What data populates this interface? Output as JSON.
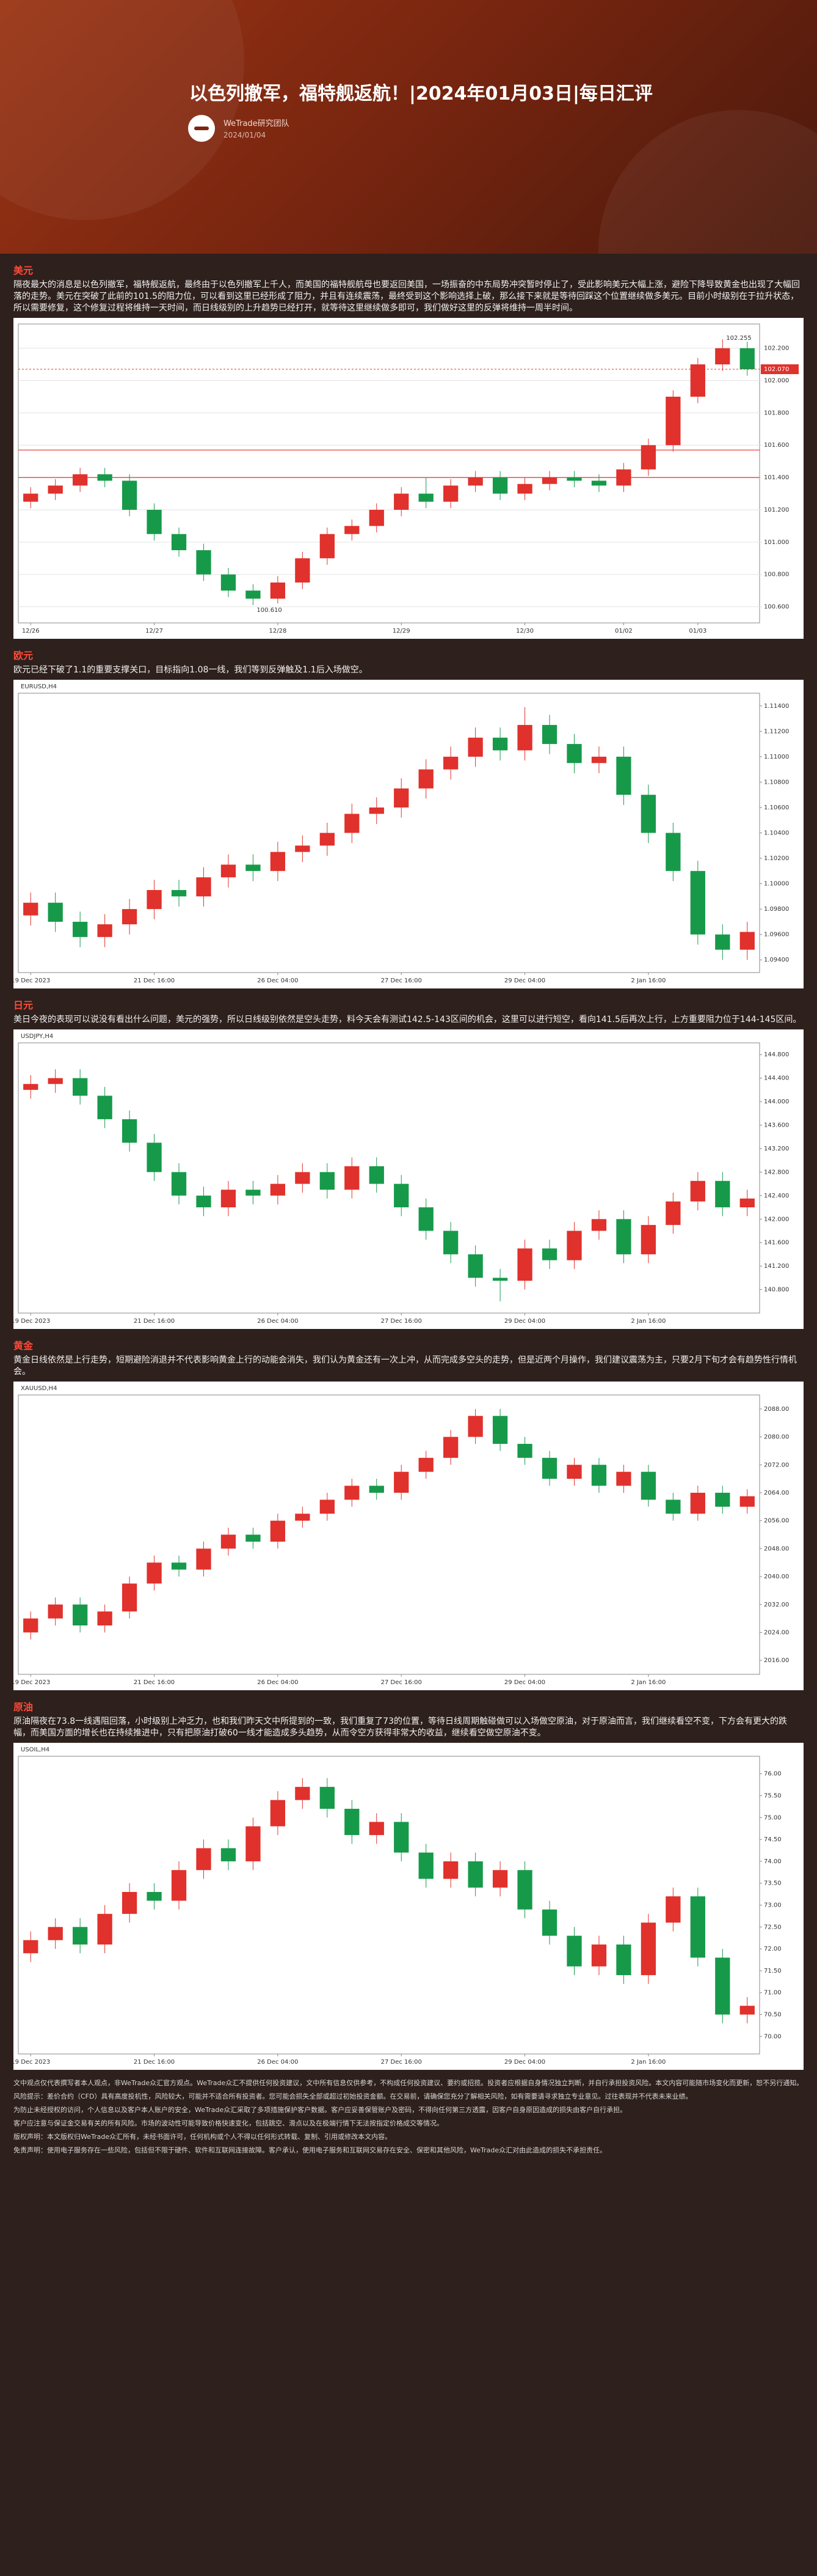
{
  "header": {
    "title": "以色列撤军，福特舰返航！|2024年01月03日|每日汇评",
    "author": "WeTrade研究团队",
    "date": "2024/01/04"
  },
  "sections": [
    {
      "heading": "美元",
      "text": "隔夜最大的消息是以色列撤军，福特舰返航，最终由于以色列撤军上千人，而美国的福特舰航母也要返回美国，一场振奋的中东局势冲突暂时停止了，受此影响美元大幅上涨，避险下降导致黄金也出现了大幅回落的走势。美元在突破了此前的101.5的阻力位，可以看到这里已经形成了阻力，并且有连续震荡，最终受到这个影响选择上破，那么接下来就是等待回踩这个位置继续做多美元。目前小时级别在于拉升状态，所以需要修复，这个修复过程将维持一天时间，而日线级别的上升趋势已经打开，就等待这里继续做多即可，我们做好这里的反弹将维持一周半时间。"
    },
    {
      "heading": "欧元",
      "text": "欧元已经下破了1.1的重要支撑关口，目标指向1.08一线，我们等到反弹触及1.1后入场做空。"
    },
    {
      "heading": "日元",
      "text": "美日今夜的表现可以说没有看出什么问题，美元的强势，所以日线级别依然是空头走势，料今天会有测试142.5-143区间的机会，这里可以进行短空，看向141.5后再次上行，上方重要阻力位于144-145区间。"
    },
    {
      "heading": "黄金",
      "text": "黄金日线依然是上行走势，短期避险消退并不代表影响黄金上行的动能会消失，我们认为黄金还有一次上冲，从而完成多空头的走势，但是近两个月操作，我们建议震荡为主，只要2月下旬才会有趋势性行情机会。"
    },
    {
      "heading": "原油",
      "text": "原油隔夜在73.8一线遇阻回落，小时级别上冲乏力，也和我们昨天文中所提到的一致，我们重复了73的位置，等待日线周期触碰做可以入场做空原油，对于原油而言，我们继续看空不变，下方会有更大的跌幅，而美国方面的增长也在持续推进中，只有把原油打破60一线才能造成多头趋势，从而令空方获得非常大的收益，继续看空做空原油不变。"
    }
  ],
  "chart_data": [
    {
      "type": "candlestick",
      "up_color": "#e0312c",
      "down_color": "#169a4a",
      "grid": true,
      "categories": [
        "12/26",
        null,
        null,
        null,
        null,
        "12/27",
        null,
        null,
        null,
        null,
        "12/28",
        null,
        null,
        null,
        null,
        "12/29",
        null,
        null,
        null,
        null,
        "12/30",
        null,
        null,
        null,
        "01/02",
        null,
        null,
        "01/03",
        null,
        null
      ],
      "open": [
        101.25,
        101.3,
        101.35,
        101.42,
        101.38,
        101.2,
        101.05,
        100.95,
        100.8,
        100.7,
        100.65,
        100.75,
        100.9,
        101.05,
        101.1,
        101.2,
        101.3,
        101.25,
        101.35,
        101.4,
        101.3,
        101.36,
        101.4,
        101.38,
        101.35,
        101.45,
        101.6,
        101.9,
        102.1,
        102.2
      ],
      "high": [
        101.34,
        101.39,
        101.46,
        101.46,
        101.42,
        101.24,
        101.09,
        100.99,
        100.84,
        100.74,
        100.79,
        100.94,
        101.09,
        101.14,
        101.24,
        101.34,
        101.4,
        101.39,
        101.44,
        101.44,
        101.4,
        101.44,
        101.44,
        101.42,
        101.49,
        101.64,
        101.94,
        102.14,
        102.255,
        102.24
      ],
      "low": [
        101.21,
        101.26,
        101.31,
        101.34,
        101.16,
        101.01,
        100.91,
        100.76,
        100.66,
        100.61,
        100.62,
        100.71,
        100.86,
        101.01,
        101.06,
        101.16,
        101.21,
        101.21,
        101.31,
        101.26,
        101.26,
        101.32,
        101.34,
        101.31,
        101.31,
        101.41,
        101.56,
        101.86,
        102.06,
        102.03
      ],
      "close": [
        101.3,
        101.35,
        101.42,
        101.38,
        101.2,
        101.05,
        100.95,
        100.8,
        100.7,
        100.65,
        100.75,
        100.9,
        101.05,
        101.1,
        101.2,
        101.3,
        101.25,
        101.35,
        101.4,
        101.3,
        101.36,
        101.4,
        101.38,
        101.35,
        101.45,
        101.6,
        101.9,
        102.1,
        102.2,
        102.07
      ],
      "ylim": [
        100.5,
        102.35
      ],
      "yticks": [
        {
          "value": 100.6,
          "label": "100.600"
        },
        {
          "value": 100.8,
          "label": "100.800"
        },
        {
          "value": 101.0,
          "label": "101.000"
        },
        {
          "value": 101.2,
          "label": "101.200"
        },
        {
          "value": 101.4,
          "label": "101.400"
        },
        {
          "value": 101.6,
          "label": "101.600"
        },
        {
          "value": 101.8,
          "label": "101.800"
        },
        {
          "value": 102.0,
          "label": "102.000"
        },
        {
          "value": 102.2,
          "label": "102.200"
        }
      ],
      "hlines": [
        101.57,
        101.4
      ],
      "annotations": [
        {
          "value": 102.255,
          "label": "102.255"
        },
        {
          "value": 100.61,
          "label": "100.610"
        }
      ],
      "last_price": {
        "value": 102.07,
        "label": "102.070"
      }
    },
    {
      "type": "candlestick",
      "symbol": "EURUSD,H4",
      "up_color": "#e0312c",
      "down_color": "#169a4a",
      "grid": false,
      "categories": [
        "19 Dec 2023",
        null,
        null,
        null,
        null,
        "21 Dec 16:00",
        null,
        null,
        null,
        null,
        "26 Dec 04:00",
        null,
        null,
        null,
        null,
        "27 Dec 16:00",
        null,
        null,
        null,
        null,
        "29 Dec 04:00",
        null,
        null,
        null,
        null,
        "2 Jan 16:00",
        null,
        null,
        null,
        null
      ],
      "open": [
        1.0975,
        1.0985,
        1.097,
        1.0958,
        1.0968,
        1.098,
        1.0995,
        1.099,
        1.1005,
        1.1015,
        1.101,
        1.1025,
        1.103,
        1.104,
        1.1055,
        1.106,
        1.1075,
        1.109,
        1.11,
        1.1115,
        1.1105,
        1.1125,
        1.111,
        1.1095,
        1.11,
        1.107,
        1.104,
        1.101,
        1.096,
        1.0948
      ],
      "high": [
        1.0993,
        1.0993,
        1.0978,
        1.0976,
        1.0988,
        1.1003,
        1.1003,
        1.1013,
        1.1023,
        1.1023,
        1.1033,
        1.1038,
        1.1048,
        1.1063,
        1.1068,
        1.1083,
        1.1098,
        1.1108,
        1.1123,
        1.1123,
        1.1139,
        1.1133,
        1.1118,
        1.1108,
        1.1108,
        1.1078,
        1.1048,
        1.1018,
        1.0968,
        1.097
      ],
      "low": [
        1.0967,
        1.0962,
        1.095,
        1.095,
        1.096,
        1.0972,
        1.0982,
        1.0982,
        1.0997,
        1.1002,
        1.1002,
        1.1017,
        1.1022,
        1.1032,
        1.1047,
        1.1052,
        1.1067,
        1.1082,
        1.1092,
        1.1097,
        1.1097,
        1.1102,
        1.1087,
        1.1087,
        1.1062,
        1.1032,
        1.1002,
        1.0952,
        1.094,
        1.094
      ],
      "close": [
        1.0985,
        1.097,
        1.0958,
        1.0968,
        1.098,
        1.0995,
        1.099,
        1.1005,
        1.1015,
        1.101,
        1.1025,
        1.103,
        1.104,
        1.1055,
        1.106,
        1.1075,
        1.109,
        1.11,
        1.1115,
        1.1105,
        1.1125,
        1.111,
        1.1095,
        1.11,
        1.107,
        1.104,
        1.101,
        1.096,
        1.0948,
        1.0962
      ],
      "ylim": [
        1.093,
        1.115
      ],
      "yticks": [
        {
          "value": 1.094,
          "label": "1.09400"
        },
        {
          "value": 1.096,
          "label": "1.09600"
        },
        {
          "value": 1.098,
          "label": "1.09800"
        },
        {
          "value": 1.1,
          "label": "1.10000"
        },
        {
          "value": 1.102,
          "label": "1.10200"
        },
        {
          "value": 1.104,
          "label": "1.10400"
        },
        {
          "value": 1.106,
          "label": "1.10600"
        },
        {
          "value": 1.108,
          "label": "1.10800"
        },
        {
          "value": 1.11,
          "label": "1.11000"
        },
        {
          "value": 1.112,
          "label": "1.11200"
        },
        {
          "value": 1.114,
          "label": "1.11400"
        }
      ]
    },
    {
      "type": "candlestick",
      "symbol": "USDJPY,H4",
      "up_color": "#e0312c",
      "down_color": "#169a4a",
      "grid": false,
      "categories": [
        "19 Dec 2023",
        null,
        null,
        null,
        null,
        "21 Dec 16:00",
        null,
        null,
        null,
        null,
        "26 Dec 04:00",
        null,
        null,
        null,
        null,
        "27 Dec 16:00",
        null,
        null,
        null,
        null,
        "29 Dec 04:00",
        null,
        null,
        null,
        null,
        "2 Jan 16:00",
        null,
        null,
        null,
        null
      ],
      "open": [
        144.2,
        144.3,
        144.4,
        144.1,
        143.7,
        143.3,
        142.8,
        142.4,
        142.2,
        142.5,
        142.4,
        142.6,
        142.8,
        142.5,
        142.9,
        142.6,
        142.2,
        141.8,
        141.4,
        141.0,
        140.95,
        141.5,
        141.3,
        141.8,
        142.0,
        141.4,
        141.9,
        142.3,
        142.65,
        142.2
      ],
      "high": [
        144.45,
        144.55,
        144.55,
        144.25,
        143.85,
        143.45,
        142.95,
        142.55,
        142.65,
        142.65,
        142.75,
        142.95,
        142.95,
        143.05,
        143.05,
        142.75,
        142.35,
        141.95,
        141.55,
        141.15,
        141.65,
        141.65,
        141.95,
        142.15,
        142.15,
        142.05,
        142.45,
        142.8,
        142.8,
        142.5
      ],
      "low": [
        144.05,
        144.15,
        143.95,
        143.55,
        143.15,
        142.65,
        142.25,
        142.05,
        142.05,
        142.25,
        142.25,
        142.45,
        142.35,
        142.35,
        142.45,
        142.05,
        141.65,
        141.25,
        140.85,
        140.6,
        140.8,
        141.15,
        141.15,
        141.65,
        141.25,
        141.25,
        141.75,
        142.15,
        142.05,
        142.05
      ],
      "close": [
        144.3,
        144.4,
        144.1,
        143.7,
        143.3,
        142.8,
        142.4,
        142.2,
        142.5,
        142.4,
        142.6,
        142.8,
        142.5,
        142.9,
        142.6,
        142.2,
        141.8,
        141.4,
        141.0,
        140.95,
        141.5,
        141.3,
        141.8,
        142.0,
        141.4,
        141.9,
        142.3,
        142.65,
        142.2,
        142.35
      ],
      "ylim": [
        140.4,
        145.0
      ],
      "yticks": [
        {
          "value": 140.8,
          "label": "140.800"
        },
        {
          "value": 141.2,
          "label": "141.200"
        },
        {
          "value": 141.6,
          "label": "141.600"
        },
        {
          "value": 142.0,
          "label": "142.000"
        },
        {
          "value": 142.4,
          "label": "142.400"
        },
        {
          "value": 142.8,
          "label": "142.800"
        },
        {
          "value": 143.2,
          "label": "143.200"
        },
        {
          "value": 143.6,
          "label": "143.600"
        },
        {
          "value": 144.0,
          "label": "144.000"
        },
        {
          "value": 144.4,
          "label": "144.400"
        },
        {
          "value": 144.8,
          "label": "144.800"
        }
      ]
    },
    {
      "type": "candlestick",
      "symbol": "XAUUSD,H4",
      "up_color": "#e0312c",
      "down_color": "#169a4a",
      "grid": false,
      "categories": [
        "19 Dec 2023",
        null,
        null,
        null,
        null,
        "21 Dec 16:00",
        null,
        null,
        null,
        null,
        "26 Dec 04:00",
        null,
        null,
        null,
        null,
        "27 Dec 16:00",
        null,
        null,
        null,
        null,
        "29 Dec 04:00",
        null,
        null,
        null,
        null,
        "2 Jan 16:00",
        null,
        null,
        null,
        null
      ],
      "open": [
        2024,
        2028,
        2032,
        2026,
        2030,
        2038,
        2044,
        2042,
        2048,
        2052,
        2050,
        2056,
        2058,
        2062,
        2066,
        2064,
        2070,
        2074,
        2080,
        2086,
        2078,
        2074,
        2068,
        2072,
        2066,
        2070,
        2062,
        2058,
        2064,
        2060
      ],
      "high": [
        2030,
        2034,
        2034,
        2032,
        2040,
        2046,
        2046,
        2050,
        2054,
        2054,
        2058,
        2060,
        2064,
        2068,
        2068,
        2072,
        2076,
        2082,
        2088,
        2088,
        2080,
        2076,
        2074,
        2074,
        2072,
        2072,
        2064,
        2066,
        2066,
        2065
      ],
      "low": [
        2022,
        2026,
        2024,
        2024,
        2028,
        2036,
        2040,
        2040,
        2046,
        2048,
        2048,
        2054,
        2056,
        2060,
        2062,
        2062,
        2068,
        2072,
        2078,
        2076,
        2072,
        2066,
        2066,
        2064,
        2064,
        2060,
        2056,
        2056,
        2058,
        2058
      ],
      "close": [
        2028,
        2032,
        2026,
        2030,
        2038,
        2044,
        2042,
        2048,
        2052,
        2050,
        2056,
        2058,
        2062,
        2066,
        2064,
        2070,
        2074,
        2080,
        2086,
        2078,
        2074,
        2068,
        2072,
        2066,
        2070,
        2062,
        2058,
        2064,
        2060,
        2063
      ],
      "ylim": [
        2012,
        2092
      ],
      "yticks": [
        {
          "value": 2016,
          "label": "2016.00"
        },
        {
          "value": 2024,
          "label": "2024.00"
        },
        {
          "value": 2032,
          "label": "2032.00"
        },
        {
          "value": 2040,
          "label": "2040.00"
        },
        {
          "value": 2048,
          "label": "2048.00"
        },
        {
          "value": 2056,
          "label": "2056.00"
        },
        {
          "value": 2064,
          "label": "2064.00"
        },
        {
          "value": 2072,
          "label": "2072.00"
        },
        {
          "value": 2080,
          "label": "2080.00"
        },
        {
          "value": 2088,
          "label": "2088.00"
        }
      ]
    },
    {
      "type": "candlestick",
      "symbol": "USOIL,H4",
      "up_color": "#e0312c",
      "down_color": "#169a4a",
      "grid": false,
      "categories": [
        "19 Dec 2023",
        null,
        null,
        null,
        null,
        "21 Dec 16:00",
        null,
        null,
        null,
        null,
        "26 Dec 04:00",
        null,
        null,
        null,
        null,
        "27 Dec 16:00",
        null,
        null,
        null,
        null,
        "29 Dec 04:00",
        null,
        null,
        null,
        null,
        "2 Jan 16:00",
        null,
        null,
        null,
        null
      ],
      "open": [
        71.9,
        72.2,
        72.5,
        72.1,
        72.8,
        73.3,
        73.1,
        73.8,
        74.3,
        74.0,
        74.8,
        75.4,
        75.7,
        75.2,
        74.6,
        74.9,
        74.2,
        73.6,
        74.0,
        73.4,
        73.8,
        72.9,
        72.3,
        71.6,
        72.1,
        71.4,
        72.6,
        73.2,
        71.8,
        70.5
      ],
      "high": [
        72.4,
        72.7,
        72.7,
        73.0,
        73.5,
        73.5,
        74.0,
        74.5,
        74.5,
        75.0,
        75.6,
        75.9,
        75.9,
        75.4,
        75.1,
        75.1,
        74.4,
        74.2,
        74.2,
        74.0,
        74.0,
        73.1,
        72.5,
        72.3,
        72.3,
        72.8,
        73.4,
        73.4,
        72.0,
        70.9
      ],
      "low": [
        71.7,
        72.0,
        71.9,
        71.9,
        72.6,
        72.9,
        72.9,
        73.6,
        73.8,
        73.8,
        74.6,
        75.2,
        75.0,
        74.4,
        74.4,
        74.0,
        73.4,
        73.4,
        73.2,
        73.2,
        72.7,
        72.1,
        71.4,
        71.4,
        71.2,
        71.2,
        72.4,
        71.6,
        70.3,
        70.3
      ],
      "close": [
        72.2,
        72.5,
        72.1,
        72.8,
        73.3,
        73.1,
        73.8,
        74.3,
        74.0,
        74.8,
        75.4,
        75.7,
        75.2,
        74.6,
        74.9,
        74.2,
        73.6,
        74.0,
        73.4,
        73.8,
        72.9,
        72.3,
        71.6,
        72.1,
        71.4,
        72.6,
        73.2,
        71.8,
        70.5,
        70.7
      ],
      "ylim": [
        69.6,
        76.4
      ],
      "yticks": [
        {
          "value": 70,
          "label": "70.00"
        },
        {
          "value": 70.5,
          "label": "70.50"
        },
        {
          "value": 71,
          "label": "71.00"
        },
        {
          "value": 71.5,
          "label": "71.50"
        },
        {
          "value": 72,
          "label": "72.00"
        },
        {
          "value": 72.5,
          "label": "72.50"
        },
        {
          "value": 73,
          "label": "73.00"
        },
        {
          "value": 73.5,
          "label": "73.50"
        },
        {
          "value": 74,
          "label": "74.00"
        },
        {
          "value": 74.5,
          "label": "74.50"
        },
        {
          "value": 75,
          "label": "75.00"
        },
        {
          "value": 75.5,
          "label": "75.50"
        },
        {
          "value": 76,
          "label": "76.00"
        }
      ]
    }
  ],
  "disclaimer": [
    "文中观点仅代表撰写者本人观点，非WeTrade众汇官方观点。WeTrade众汇不提供任何投资建议，文中所有信息仅供参考，不构成任何投资建议、要约或招揽。投资者应根据自身情况独立判断，并自行承担投资风险。本文内容可能随市场变化而更新，恕不另行通知。",
    "风险提示：差价合约（CFD）具有高度投机性，风险较大，可能并不适合所有投资者。您可能会损失全部或超过初始投资金额。在交易前，请确保您充分了解相关风险，如有需要请寻求独立专业意见。过往表现并不代表未来业绩。",
    "为防止未经授权的访问，个人信息以及客户本人账户的安全，WeTrade众汇采取了多项措施保护客户数据。客户应妥善保管账户及密码，不得向任何第三方透露，因客户自身原因造成的损失由客户自行承担。",
    "客户应注意与保证金交易有关的所有风险。市场的波动性可能导致价格快速变化，包括跳空、滑点以及在极端行情下无法按指定价格成交等情况。",
    "版权声明：本文版权归WeTrade众汇所有，未经书面许可，任何机构或个人不得以任何形式转载、复制、引用或修改本文内容。",
    "免责声明：使用电子服务存在一些风险，包括但不限于硬件、软件和互联网连接故障。客户承认，使用电子服务和互联网交易存在安全、保密和其他风险，WeTrade众汇对由此造成的损失不承担责任。"
  ]
}
